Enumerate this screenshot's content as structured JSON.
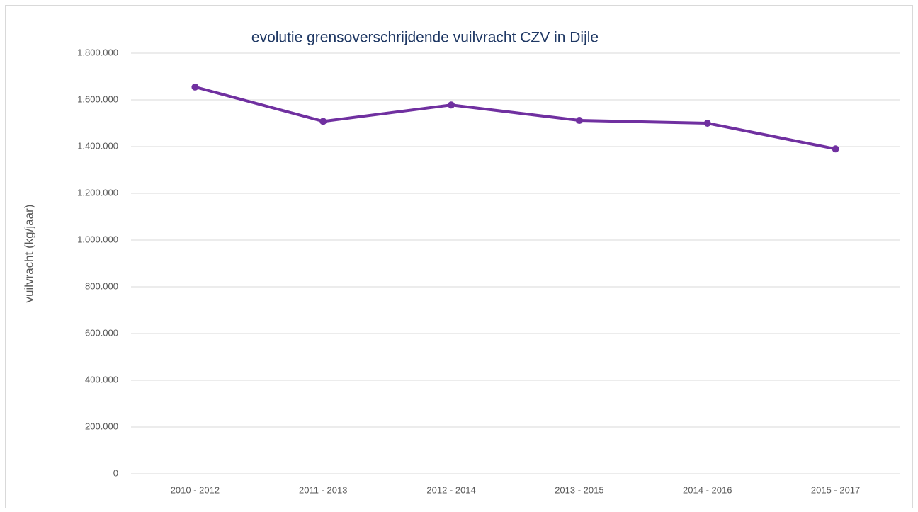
{
  "chart_data": {
    "type": "line",
    "title": "evolutie grensoverschrijdende  vuilvracht CZV  in  Dijle",
    "y_label": "vuilvracht (kg/jaar)",
    "categories": [
      "2010 - 2012",
      "2011 - 2013",
      "2012 - 2014",
      "2013 - 2015",
      "2014 - 2016",
      "2015 - 2017"
    ],
    "series": [
      {
        "name": "vuilvracht",
        "color": "#7030a0",
        "values": [
          1655000,
          1508000,
          1578000,
          1512000,
          1500000,
          1390000
        ]
      }
    ],
    "ylim": [
      0,
      1800000
    ],
    "yticks": [
      0,
      {
        "value": 200000,
        "label": "200.000"
      },
      {
        "value": 400000,
        "label": "400.000"
      },
      {
        "value": 600000,
        "label": "600.000"
      },
      {
        "value": 800000,
        "label": "800.000"
      },
      {
        "value": 1000000,
        "label": "1.000.000"
      },
      {
        "value": 1200000,
        "label": "1.200.000"
      },
      {
        "value": 1400000,
        "label": "1.400.000"
      },
      {
        "value": 1600000,
        "label": "1.600.000"
      },
      {
        "value": 1800000,
        "label": "1.800.000"
      }
    ],
    "grid": true
  }
}
